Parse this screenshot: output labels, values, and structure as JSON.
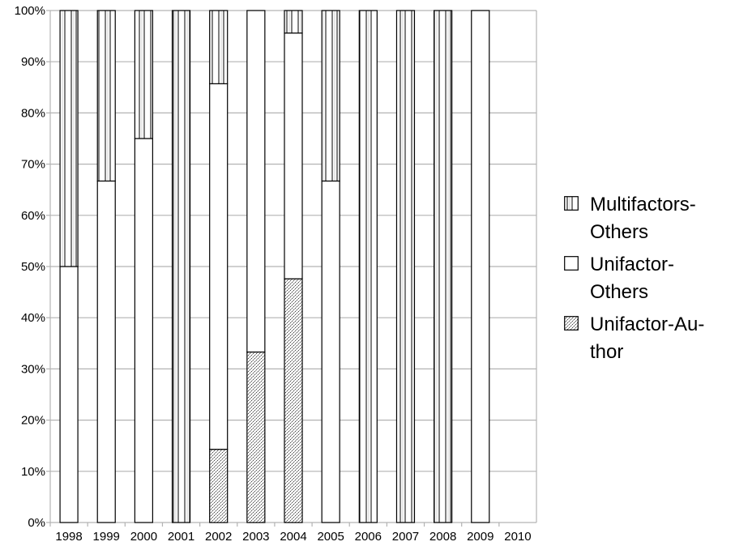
{
  "chart_data": {
    "type": "bar",
    "stacked": true,
    "normalized_percent": true,
    "title": "",
    "xlabel": "",
    "ylabel": "",
    "categories": [
      "1998",
      "1999",
      "2000",
      "2001",
      "2002",
      "2003",
      "2004",
      "2005",
      "2006",
      "2007",
      "2008",
      "2009",
      "2010"
    ],
    "y_ticks": [
      "0%",
      "10%",
      "20%",
      "30%",
      "40%",
      "50%",
      "60%",
      "70%",
      "80%",
      "90%",
      "100%"
    ],
    "ylim": [
      0,
      100
    ],
    "grid": "horizontal",
    "legend_position": "right",
    "series": [
      {
        "name": "Unifactor-Author",
        "pattern": "dotted-crosshatch",
        "values": [
          0,
          0,
          0,
          0,
          14.3,
          33.3,
          47.6,
          0,
          0,
          0,
          0,
          0,
          0
        ]
      },
      {
        "name": "Unifactor-Others",
        "pattern": "plain-white",
        "values": [
          50,
          66.7,
          75,
          0,
          71.4,
          66.7,
          48.0,
          66.7,
          0,
          0,
          0,
          100,
          0
        ]
      },
      {
        "name": "Multifactors-Others",
        "pattern": "vertical-stripes",
        "values": [
          50,
          33.3,
          25,
          100,
          14.3,
          0,
          4.4,
          33.3,
          100,
          100,
          100,
          0,
          0
        ]
      }
    ],
    "legend": [
      {
        "label": "Multifactors-Others",
        "display": "Multifactors- Others",
        "pattern": "vertical-stripes"
      },
      {
        "label": "Unifactor-Others",
        "display": "Unifactor- Others",
        "pattern": "plain-white"
      },
      {
        "label": "Unifactor-Author",
        "display": "Unifactor-Au- thor",
        "pattern": "dotted-crosshatch"
      }
    ],
    "colors": {
      "grid": "#b3b3b3",
      "bar_stroke": "#000000",
      "fill": "#ffffff"
    }
  }
}
